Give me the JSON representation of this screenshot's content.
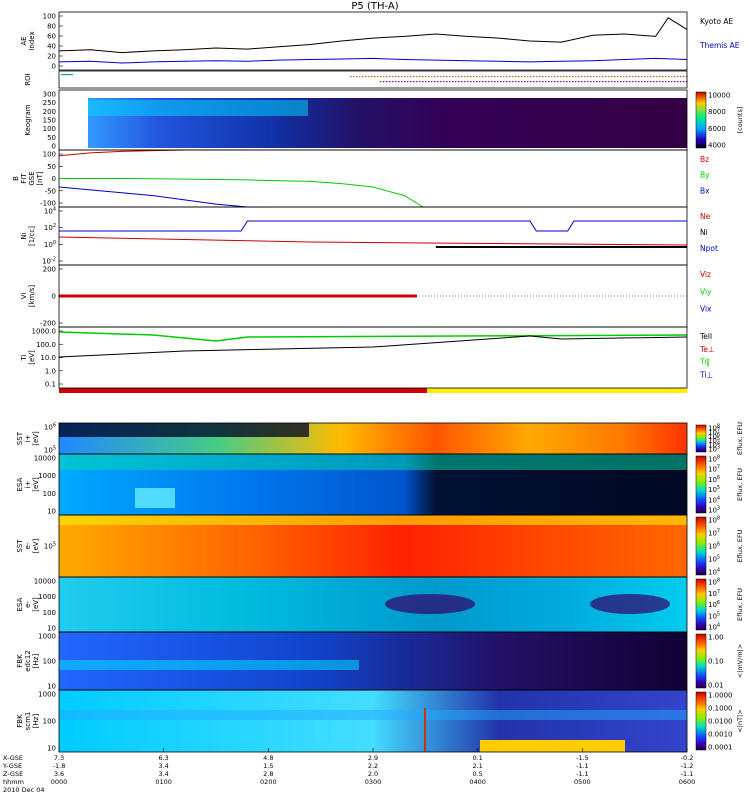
{
  "title": "P5 (TH-A)",
  "chart_data": [
    {
      "type": "line",
      "ylabel": "AE Index",
      "ylim": [
        0,
        100
      ],
      "yticks": [
        "100",
        "80",
        "60",
        "40",
        "20",
        "0"
      ],
      "series": [
        {
          "name": "Kyoto AE",
          "color": "#000000",
          "x": [
            0,
            0.05,
            0.1,
            0.15,
            0.2,
            0.25,
            0.3,
            0.35,
            0.4,
            0.45,
            0.5,
            0.55,
            0.6,
            0.65,
            0.7,
            0.75,
            0.8,
            0.85,
            0.9,
            0.95,
            0.97,
            1.0
          ],
          "values": [
            33,
            35,
            30,
            33,
            35,
            38,
            36,
            40,
            44,
            50,
            55,
            58,
            62,
            58,
            55,
            50,
            48,
            60,
            62,
            58,
            90,
            70
          ]
        },
        {
          "name": "Themis AE",
          "color": "#0000cc",
          "x": [
            0,
            0.05,
            0.1,
            0.15,
            0.2,
            0.25,
            0.3,
            0.35,
            0.4,
            0.45,
            0.5,
            0.55,
            0.6,
            0.65,
            0.7,
            0.75,
            0.8,
            0.85,
            0.9,
            0.95,
            1.0
          ],
          "values": [
            14,
            15,
            12,
            14,
            15,
            16,
            15,
            17,
            18,
            19,
            20,
            18,
            17,
            16,
            15,
            14,
            15,
            16,
            18,
            20,
            18
          ]
        }
      ]
    },
    {
      "type": "table",
      "ylabel": "ROI"
    },
    {
      "type": "heatmap",
      "ylabel": "Keogram",
      "yticks": [
        "300",
        "250",
        "200",
        "150",
        "100",
        "50",
        "0"
      ],
      "colorbar_ticks": [
        "10000",
        "8000",
        "6000",
        "4000"
      ],
      "colorbar_label": "[counts]"
    },
    {
      "type": "line",
      "ylabel": "B FIT GSE [nT]",
      "ylim": [
        -100,
        100
      ],
      "yticks": [
        "100",
        "50",
        "0",
        "-50",
        "-100"
      ],
      "series": [
        {
          "name": "Bz",
          "color": "#cc0000",
          "x": [
            0,
            0.05,
            0.1,
            0.15,
            0.2,
            0.25,
            0.28,
            0.3
          ],
          "values": [
            80,
            90,
            95,
            98,
            100,
            100,
            100,
            100
          ]
        },
        {
          "name": "By",
          "color": "#00cc00",
          "x": [
            0,
            0.1,
            0.2,
            0.3,
            0.4,
            0.45,
            0.5,
            0.55,
            0.58
          ],
          "values": [
            0,
            0,
            -2,
            -5,
            -10,
            -18,
            -30,
            -60,
            -100
          ]
        },
        {
          "name": "Bx",
          "color": "#0000cc",
          "x": [
            0,
            0.05,
            0.1,
            0.15,
            0.2,
            0.25,
            0.3,
            0.33
          ],
          "values": [
            -30,
            -40,
            -50,
            -60,
            -75,
            -90,
            -100,
            -100
          ]
        }
      ]
    },
    {
      "type": "line",
      "ylabel": "Ni [1/cc]",
      "yticks": [
        "10^4",
        "10^2",
        "10^0",
        "10^-2"
      ],
      "series": [
        {
          "name": "Ne",
          "color": "#cc0000"
        },
        {
          "name": "Ni",
          "color": "#000000"
        },
        {
          "name": "Npot",
          "color": "#0000cc"
        }
      ]
    },
    {
      "type": "line",
      "ylabel": "Vi [km/s]",
      "ylim": [
        -300,
        300
      ],
      "yticks": [
        "200",
        "0",
        "-200"
      ],
      "series": [
        {
          "name": "Viz",
          "color": "#cc0000"
        },
        {
          "name": "Viy",
          "color": "#00cc00"
        },
        {
          "name": "Vix",
          "color": "#0000cc"
        }
      ]
    },
    {
      "type": "line",
      "ylabel": "Ti [eV]",
      "yticks": [
        "1000.0",
        "100.0",
        "10.0",
        "1.0",
        "0.1"
      ],
      "series": [
        {
          "name": "Tell",
          "color": "#000000"
        },
        {
          "name": "Te⊥",
          "color": "#cc0000"
        },
        {
          "name": "Ti‖",
          "color": "#00cc00"
        },
        {
          "name": "Ti⊥",
          "color": "#0000cc"
        }
      ]
    },
    {
      "type": "heatmap",
      "ylabel": "SST i+ [eV]",
      "yticks": [
        "10^6",
        "10^5"
      ],
      "colorbar_ticks": [
        "10^8",
        "10^7",
        "10^6",
        "10^5",
        "10^4",
        "10^3"
      ],
      "colorbar_label": "Eflux, EFU"
    },
    {
      "type": "heatmap",
      "ylabel": "ESA i+ [eV]",
      "yticks": [
        "10000",
        "1000",
        "100",
        "10"
      ],
      "colorbar_ticks": [
        "10^8",
        "10^7",
        "10^6",
        "10^5",
        "10^4",
        "10^3"
      ],
      "colorbar_label": "Eflux, EFU"
    },
    {
      "type": "heatmap",
      "ylabel": "SST e- [eV]",
      "yticks": [
        "10^5"
      ],
      "colorbar_ticks": [
        "10^8",
        "10^7",
        "10^6",
        "10^5",
        "10^4"
      ],
      "colorbar_label": "Eflux, EFU"
    },
    {
      "type": "heatmap",
      "ylabel": "ESA e- [eV]",
      "yticks": [
        "10000",
        "1000",
        "100",
        "10"
      ],
      "colorbar_ticks": [
        "10^8",
        "10^7",
        "10^6",
        "10^5",
        "10^4"
      ],
      "colorbar_label": "Eflux, EFU"
    },
    {
      "type": "heatmap",
      "ylabel": "FBK edc12 [Hz]",
      "yticks": [
        "1000",
        "100",
        "10"
      ],
      "colorbar_ticks": [
        "1.00",
        "0.10",
        "0.01"
      ],
      "colorbar_label": "<|mV/m|>"
    },
    {
      "type": "heatmap",
      "ylabel": "FBK scm1 [Hz]",
      "yticks": [
        "1000",
        "100",
        "10"
      ],
      "colorbar_ticks": [
        "1.0000",
        "0.1000",
        "0.0100",
        "0.0010",
        "0.0001"
      ],
      "colorbar_label": "<|nT|>"
    }
  ],
  "x_axis": {
    "row_labels": [
      "X-GSE",
      "Y-GSE",
      "Z-GSE",
      "hhmm",
      "2010 Dec 04"
    ],
    "ticks": [
      {
        "X": "7.3",
        "Y": "-1.8",
        "Z": "3.6",
        "hhmm": "0000"
      },
      {
        "X": "6.3",
        "Y": "3.4",
        "Z": "3.4",
        "hhmm": "0100"
      },
      {
        "X": "4.8",
        "Y": "1.5",
        "Z": "2.8",
        "hhmm": "0200"
      },
      {
        "X": "2.9",
        "Y": "2.2",
        "Z": "2.0",
        "hhmm": "0300"
      },
      {
        "X": "0.1",
        "Y": "2.1",
        "Z": "0.5",
        "hhmm": "0400"
      },
      {
        "X": "-1.5",
        "Y": "-1.1",
        "Z": "-1.1",
        "hhmm": "0500"
      },
      {
        "X": "-0.2",
        "Y": "-1.2",
        "Z": "-1.1",
        "hhmm": "0600"
      }
    ]
  }
}
